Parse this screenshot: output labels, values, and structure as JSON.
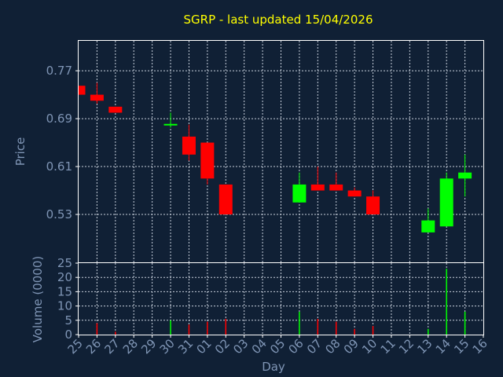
{
  "title": "SGRP - last updated 15/04/2026",
  "colors": {
    "background": "#102035",
    "up": "#00ff00",
    "down": "#ff0000",
    "title": "#ffff00",
    "axis_text": "#7f95b5",
    "grid": "#c8d0dc"
  },
  "chart_data": [
    {
      "type": "candlestick",
      "ylabel": "Price",
      "ylim": [
        0.45,
        0.82
      ],
      "yticks": [
        "0.77",
        "0.69",
        "0.61",
        "0.53"
      ],
      "grid": true,
      "candles": [
        {
          "day": "25",
          "open": 0.745,
          "high": 0.745,
          "low": 0.73,
          "close": 0.73
        },
        {
          "day": "26",
          "open": 0.73,
          "high": 0.75,
          "low": 0.715,
          "close": 0.72
        },
        {
          "day": "27",
          "open": 0.71,
          "high": 0.71,
          "low": 0.7,
          "close": 0.7
        },
        {
          "day": "30",
          "open": 0.68,
          "high": 0.7,
          "low": 0.675,
          "close": 0.68
        },
        {
          "day": "31",
          "open": 0.66,
          "high": 0.68,
          "low": 0.62,
          "close": 0.63
        },
        {
          "day": "01",
          "open": 0.65,
          "high": 0.65,
          "low": 0.58,
          "close": 0.59
        },
        {
          "day": "02",
          "open": 0.58,
          "high": 0.58,
          "low": 0.53,
          "close": 0.53
        },
        {
          "day": "06",
          "open": 0.55,
          "high": 0.6,
          "low": 0.55,
          "close": 0.58
        },
        {
          "day": "07",
          "open": 0.58,
          "high": 0.61,
          "low": 0.57,
          "close": 0.57
        },
        {
          "day": "08",
          "open": 0.58,
          "high": 0.6,
          "low": 0.57,
          "close": 0.57
        },
        {
          "day": "09",
          "open": 0.57,
          "high": 0.575,
          "low": 0.56,
          "close": 0.56
        },
        {
          "day": "10",
          "open": 0.56,
          "high": 0.57,
          "low": 0.53,
          "close": 0.53
        },
        {
          "day": "13",
          "open": 0.5,
          "high": 0.54,
          "low": 0.5,
          "close": 0.52
        },
        {
          "day": "14",
          "open": 0.51,
          "high": 0.6,
          "low": 0.51,
          "close": 0.59
        },
        {
          "day": "15",
          "open": 0.59,
          "high": 0.63,
          "low": 0.56,
          "close": 0.6
        }
      ]
    },
    {
      "type": "bar",
      "xlabel": "Day",
      "ylabel": "Volume (0000)",
      "ylim": [
        0,
        25
      ],
      "yticks": [
        "0",
        "5",
        "10",
        "15",
        "20",
        "25"
      ],
      "grid": true,
      "categories": [
        "25",
        "26",
        "27",
        "28",
        "29",
        "30",
        "31",
        "01",
        "02",
        "03",
        "04",
        "05",
        "06",
        "07",
        "08",
        "09",
        "10",
        "11",
        "12",
        "13",
        "14",
        "15",
        "16"
      ],
      "values": [
        0,
        4,
        1,
        0,
        0,
        5,
        3.5,
        4.5,
        5.5,
        0,
        0,
        0,
        8,
        5.5,
        4.5,
        2,
        3,
        0,
        0,
        2,
        23,
        8,
        0
      ]
    }
  ]
}
